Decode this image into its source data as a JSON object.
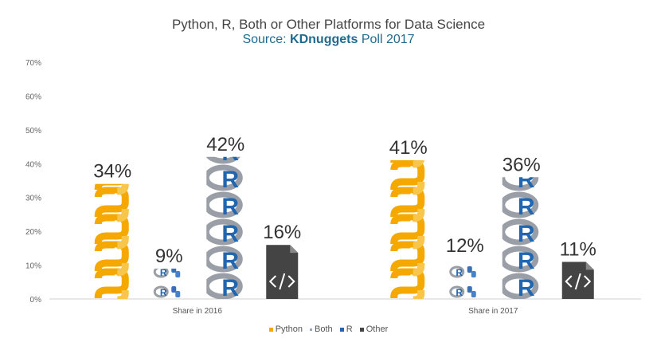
{
  "chart_data": {
    "type": "bar",
    "title": "Python, R, Both or Other Platforms for Data Science",
    "subtitle_source": "Source: ",
    "subtitle_brand": "KDnuggets",
    "subtitle_rest": " Poll 2017",
    "categories": [
      "Share in 2016",
      "Share in 2017"
    ],
    "series": [
      {
        "name": "Python",
        "values": [
          34,
          41
        ],
        "color": "#f5a800",
        "icon": "python-logo-icon"
      },
      {
        "name": "Both",
        "values": [
          9,
          12
        ],
        "color": "#8fa8c8",
        "icon": "r-and-python-icon"
      },
      {
        "name": "R",
        "values": [
          42,
          36
        ],
        "color": "#2166b0",
        "icon": "r-logo-icon"
      },
      {
        "name": "Other",
        "values": [
          16,
          11
        ],
        "color": "#444444",
        "icon": "code-file-icon"
      }
    ],
    "data_labels": [
      [
        "34%",
        "9%",
        "42%",
        "16%"
      ],
      [
        "41%",
        "12%",
        "36%",
        "11%"
      ]
    ],
    "ylim": [
      0,
      70
    ],
    "yticks": [
      "0%",
      "10%",
      "20%",
      "30%",
      "40%",
      "50%",
      "60%",
      "70%"
    ],
    "grid": false,
    "legend_position": "bottom"
  }
}
